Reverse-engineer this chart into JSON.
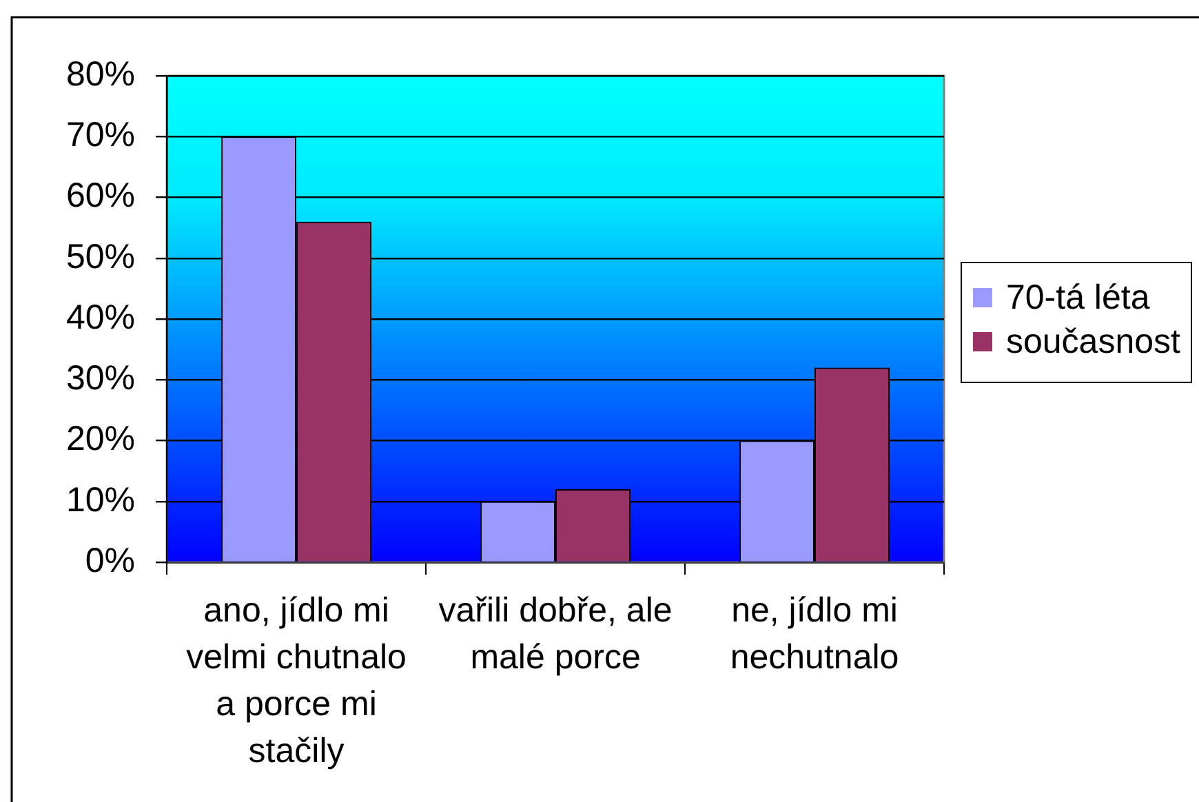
{
  "chart_data": {
    "type": "bar",
    "categories": [
      "ano, jídlo mi velmi chutnalo a porce mi stačily",
      "vařili dobře, ale malé porce",
      "ne, jídlo mi nechutnalo"
    ],
    "series": [
      {
        "name": "70-tá léta",
        "color": "#9999ff",
        "values": [
          70,
          10,
          20
        ]
      },
      {
        "name": "současnost",
        "color": "#993366",
        "values": [
          56,
          12,
          32
        ]
      }
    ],
    "ylim": [
      0,
      80
    ],
    "yticks": [
      {
        "value": 0,
        "label": "0%"
      },
      {
        "value": 10,
        "label": "10%"
      },
      {
        "value": 20,
        "label": "20%"
      },
      {
        "value": 30,
        "label": "30%"
      },
      {
        "value": 40,
        "label": "40%"
      },
      {
        "value": 50,
        "label": "50%"
      },
      {
        "value": 60,
        "label": "60%"
      },
      {
        "value": 70,
        "label": "70%"
      },
      {
        "value": 80,
        "label": "80%"
      }
    ],
    "grid": "y",
    "legend": "right"
  }
}
